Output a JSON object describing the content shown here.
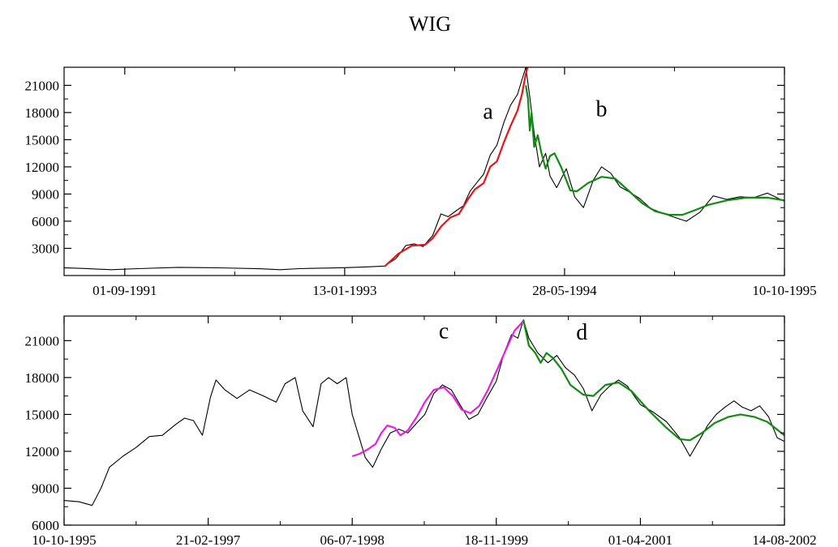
{
  "title": "WIG",
  "chart_data": [
    {
      "type": "line",
      "title": "",
      "xlabel": "",
      "ylabel": "",
      "xlim": [
        "1991-04-16",
        "1995-10-10"
      ],
      "ylim": [
        0,
        23000
      ],
      "grid": false,
      "x_ticks": [
        "01-09-1991",
        "13-01-1993",
        "28-05-1994",
        "10-10-1995"
      ],
      "y_ticks": [
        3000,
        6000,
        9000,
        12000,
        15000,
        18000,
        21000
      ],
      "annotations": [
        {
          "text": "a",
          "x": "1993-12-05",
          "y": 17300
        },
        {
          "text": "b",
          "x": "1994-08-20",
          "y": 17600
        }
      ],
      "series": [
        {
          "color": "#000000",
          "points": [
            [
              "1991-04-16",
              860
            ],
            [
              "1991-06-01",
              780
            ],
            [
              "1991-08-01",
              640
            ],
            [
              "1991-10-01",
              760
            ],
            [
              "1992-01-01",
              900
            ],
            [
              "1992-04-01",
              850
            ],
            [
              "1992-07-01",
              750
            ],
            [
              "1992-08-20",
              640
            ],
            [
              "1992-10-01",
              760
            ],
            [
              "1992-12-01",
              820
            ],
            [
              "1993-01-13",
              870
            ],
            [
              "1993-03-01",
              950
            ],
            [
              "1993-04-14",
              1050
            ],
            [
              "1993-05-10",
              1900
            ],
            [
              "1993-06-01",
              3300
            ],
            [
              "1993-06-20",
              3500
            ],
            [
              "1993-07-10",
              3200
            ],
            [
              "1993-08-01",
              4400
            ],
            [
              "1993-08-20",
              6800
            ],
            [
              "1993-09-05",
              6500
            ],
            [
              "1993-09-25",
              7200
            ],
            [
              "1993-10-10",
              7700
            ],
            [
              "1993-10-25",
              9300
            ],
            [
              "1993-11-10",
              10300
            ],
            [
              "1993-11-25",
              11200
            ],
            [
              "1993-12-10",
              13300
            ],
            [
              "1993-12-25",
              14400
            ],
            [
              "1994-01-10",
              16900
            ],
            [
              "1994-01-25",
              18800
            ],
            [
              "1994-02-10",
              20000
            ],
            [
              "1994-03-01",
              23000
            ],
            [
              "1994-03-10",
              19700
            ],
            [
              "1994-03-20",
              15700
            ],
            [
              "1994-04-01",
              12000
            ],
            [
              "1994-04-15",
              13500
            ],
            [
              "1994-04-25",
              11000
            ],
            [
              "1994-05-10",
              9700
            ],
            [
              "1994-06-01",
              11800
            ],
            [
              "1994-06-20",
              8700
            ],
            [
              "1994-07-10",
              7500
            ],
            [
              "1994-08-01",
              10500
            ],
            [
              "1994-08-20",
              12000
            ],
            [
              "1994-09-10",
              11300
            ],
            [
              "1994-10-01",
              9800
            ],
            [
              "1994-10-20",
              9300
            ],
            [
              "1994-11-15",
              8500
            ],
            [
              "1994-12-10",
              7400
            ],
            [
              "1995-01-10",
              6800
            ],
            [
              "1995-02-10",
              6300
            ],
            [
              "1995-03-01",
              6000
            ],
            [
              "1995-04-01",
              7000
            ],
            [
              "1995-05-01",
              8800
            ],
            [
              "1995-06-01",
              8400
            ],
            [
              "1995-07-01",
              8700
            ],
            [
              "1995-08-01",
              8600
            ],
            [
              "1995-09-01",
              9100
            ],
            [
              "1995-10-10",
              8200
            ]
          ]
        },
        {
          "color": "#e8141a",
          "points": [
            [
              "1993-04-14",
              1000
            ],
            [
              "1993-05-15",
              2400
            ],
            [
              "1993-06-15",
              3300
            ],
            [
              "1993-07-15",
              3400
            ],
            [
              "1993-08-01",
              4100
            ],
            [
              "1993-08-20",
              5400
            ],
            [
              "1993-09-10",
              6400
            ],
            [
              "1993-09-30",
              6800
            ],
            [
              "1993-10-20",
              8400
            ],
            [
              "1993-11-05",
              9500
            ],
            [
              "1993-11-25",
              10200
            ],
            [
              "1993-12-10",
              12000
            ],
            [
              "1993-12-25",
              12600
            ],
            [
              "1994-01-10",
              14700
            ],
            [
              "1994-01-25",
              16500
            ],
            [
              "1994-02-10",
              18200
            ],
            [
              "1994-02-20",
              20000
            ],
            [
              "1994-03-01",
              22300
            ],
            [
              "1994-03-05",
              23000
            ]
          ]
        },
        {
          "color": "#118a11",
          "points": [
            [
              "1994-03-01",
              21000
            ],
            [
              "1994-03-06",
              19500
            ],
            [
              "1994-03-10",
              16000
            ],
            [
              "1994-03-14",
              18000
            ],
            [
              "1994-03-20",
              14200
            ],
            [
              "1994-03-28",
              15500
            ],
            [
              "1994-04-05",
              13600
            ],
            [
              "1994-04-15",
              11800
            ],
            [
              "1994-04-25",
              13200
            ],
            [
              "1994-05-05",
              13500
            ],
            [
              "1994-05-20",
              12000
            ],
            [
              "1994-06-10",
              9400
            ],
            [
              "1994-06-25",
              9300
            ],
            [
              "1994-07-20",
              10200
            ],
            [
              "1994-08-20",
              10900
            ],
            [
              "1994-09-20",
              10700
            ],
            [
              "1994-10-20",
              9400
            ],
            [
              "1994-11-20",
              8000
            ],
            [
              "1994-12-20",
              7100
            ],
            [
              "1995-01-20",
              6700
            ],
            [
              "1995-02-20",
              6700
            ],
            [
              "1995-03-20",
              7200
            ],
            [
              "1995-04-20",
              7800
            ],
            [
              "1995-06-01",
              8300
            ],
            [
              "1995-07-15",
              8600
            ],
            [
              "1995-09-01",
              8600
            ],
            [
              "1995-10-10",
              8300
            ]
          ]
        }
      ]
    },
    {
      "type": "line",
      "title": "",
      "xlabel": "",
      "ylabel": "",
      "xlim": [
        "1995-10-10",
        "2002-08-14"
      ],
      "ylim": [
        6000,
        23000
      ],
      "grid": false,
      "x_ticks": [
        "10-10-1995",
        "21-02-1997",
        "06-07-1998",
        "18-11-1999",
        "01-04-2001",
        "14-08-2002"
      ],
      "y_ticks": [
        6000,
        9000,
        12000,
        15000,
        18000,
        21000
      ],
      "annotations": [
        {
          "text": "c",
          "x": "1999-05-20",
          "y": 21200
        },
        {
          "text": "d",
          "x": "2000-09-10",
          "y": 21100
        }
      ],
      "series": [
        {
          "color": "#000000",
          "points": [
            [
              "1995-10-10",
              8000
            ],
            [
              "1995-12-01",
              7900
            ],
            [
              "1996-01-15",
              7600
            ],
            [
              "1996-02-15",
              9000
            ],
            [
              "1996-03-15",
              10700
            ],
            [
              "1996-05-01",
              11600
            ],
            [
              "1996-06-15",
              12300
            ],
            [
              "1996-08-01",
              13200
            ],
            [
              "1996-09-15",
              13300
            ],
            [
              "1996-11-01",
              14200
            ],
            [
              "1996-12-01",
              14700
            ],
            [
              "1997-01-01",
              14500
            ],
            [
              "1997-02-01",
              13300
            ],
            [
              "1997-03-01",
              16400
            ],
            [
              "1997-03-20",
              17800
            ],
            [
              "1997-04-20",
              17000
            ],
            [
              "1997-06-01",
              16300
            ],
            [
              "1997-07-15",
              17000
            ],
            [
              "1997-09-01",
              16500
            ],
            [
              "1997-10-15",
              16000
            ],
            [
              "1997-11-15",
              17500
            ],
            [
              "1997-12-20",
              18000
            ],
            [
              "1998-01-15",
              15300
            ],
            [
              "1998-02-20",
              14000
            ],
            [
              "1998-03-20",
              17500
            ],
            [
              "1998-04-15",
              18000
            ],
            [
              "1998-05-15",
              17500
            ],
            [
              "1998-06-15",
              18000
            ],
            [
              "1998-07-06",
              15000
            ],
            [
              "1998-08-01",
              13000
            ],
            [
              "1998-08-20",
              11500
            ],
            [
              "1998-09-15",
              10700
            ],
            [
              "1998-10-15",
              12200
            ],
            [
              "1998-11-15",
              13500
            ],
            [
              "1998-12-15",
              13800
            ],
            [
              "1999-01-15",
              13500
            ],
            [
              "1999-02-15",
              14300
            ],
            [
              "1999-03-15",
              15000
            ],
            [
              "1999-04-15",
              16700
            ],
            [
              "1999-05-15",
              17400
            ],
            [
              "1999-06-15",
              17000
            ],
            [
              "1999-07-15",
              15800
            ],
            [
              "1999-08-15",
              14600
            ],
            [
              "1999-09-15",
              15000
            ],
            [
              "1999-10-15",
              16300
            ],
            [
              "1999-11-18",
              17700
            ],
            [
              "1999-12-15",
              20000
            ],
            [
              "2000-01-10",
              21500
            ],
            [
              "2000-02-01",
              21200
            ],
            [
              "2000-02-20",
              22700
            ],
            [
              "2000-03-10",
              21200
            ],
            [
              "2000-04-10",
              20000
            ],
            [
              "2000-05-15",
              19200
            ],
            [
              "2000-06-15",
              19800
            ],
            [
              "2000-07-15",
              18800
            ],
            [
              "2000-08-15",
              18200
            ],
            [
              "2000-09-15",
              17100
            ],
            [
              "2000-10-15",
              15300
            ],
            [
              "2000-11-15",
              16600
            ],
            [
              "2000-12-15",
              17300
            ],
            [
              "2001-01-15",
              17800
            ],
            [
              "2001-02-15",
              17300
            ],
            [
              "2001-04-01",
              15800
            ],
            [
              "2001-05-15",
              15200
            ],
            [
              "2001-07-01",
              14400
            ],
            [
              "2001-08-15",
              13100
            ],
            [
              "2001-09-20",
              11600
            ],
            [
              "2001-10-20",
              12800
            ],
            [
              "2001-11-20",
              14100
            ],
            [
              "2001-12-20",
              15000
            ],
            [
              "2002-01-20",
              15600
            ],
            [
              "2002-02-20",
              16100
            ],
            [
              "2002-03-20",
              15600
            ],
            [
              "2002-04-20",
              15300
            ],
            [
              "2002-05-20",
              15700
            ],
            [
              "2002-06-20",
              14800
            ],
            [
              "2002-07-20",
              13100
            ],
            [
              "2002-08-14",
              12800
            ]
          ]
        },
        {
          "color": "#e91ee0",
          "points": [
            [
              "1998-07-06",
              11600
            ],
            [
              "1998-08-01",
              11800
            ],
            [
              "1998-09-01",
              12200
            ],
            [
              "1998-09-25",
              12600
            ],
            [
              "1998-10-15",
              13500
            ],
            [
              "1998-11-05",
              14100
            ],
            [
              "1998-12-01",
              13900
            ],
            [
              "1998-12-20",
              13300
            ],
            [
              "1999-01-15",
              13700
            ],
            [
              "1999-02-15",
              14800
            ],
            [
              "1999-03-15",
              16000
            ],
            [
              "1999-04-15",
              17000
            ],
            [
              "1999-05-20",
              17200
            ],
            [
              "1999-06-20",
              16500
            ],
            [
              "1999-07-20",
              15400
            ],
            [
              "1999-08-20",
              15100
            ],
            [
              "1999-09-20",
              15700
            ],
            [
              "1999-10-20",
              17000
            ],
            [
              "1999-11-20",
              18600
            ],
            [
              "1999-12-20",
              20200
            ],
            [
              "2000-01-20",
              21800
            ],
            [
              "2000-02-20",
              22600
            ]
          ]
        },
        {
          "color": "#118a11",
          "points": [
            [
              "2000-02-20",
              22700
            ],
            [
              "2000-03-10",
              20600
            ],
            [
              "2000-04-01",
              20000
            ],
            [
              "2000-04-20",
              19200
            ],
            [
              "2000-05-10",
              20000
            ],
            [
              "2000-06-01",
              19600
            ],
            [
              "2000-07-01",
              18700
            ],
            [
              "2000-08-01",
              17400
            ],
            [
              "2000-09-15",
              16600
            ],
            [
              "2000-10-20",
              16500
            ],
            [
              "2000-12-01",
              17400
            ],
            [
              "2001-01-15",
              17600
            ],
            [
              "2001-03-01",
              16900
            ],
            [
              "2001-05-01",
              15300
            ],
            [
              "2001-07-01",
              13900
            ],
            [
              "2001-08-15",
              13000
            ],
            [
              "2001-09-20",
              12900
            ],
            [
              "2001-11-01",
              13500
            ],
            [
              "2001-12-15",
              14300
            ],
            [
              "2002-02-01",
              14800
            ],
            [
              "2002-03-15",
              15000
            ],
            [
              "2002-05-01",
              14800
            ],
            [
              "2002-06-15",
              14400
            ],
            [
              "2002-08-14",
              13300
            ]
          ]
        }
      ]
    }
  ]
}
